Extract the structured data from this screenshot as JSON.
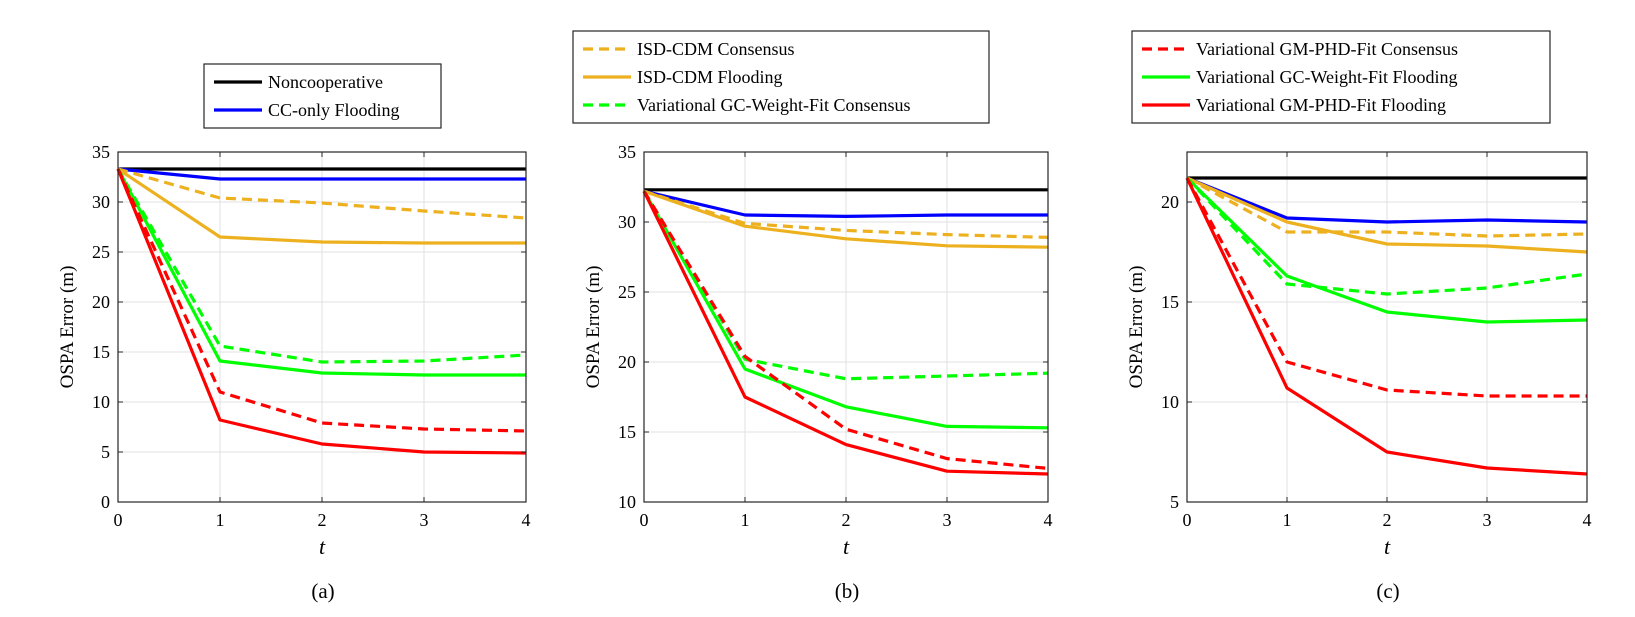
{
  "chart_data": [
    {
      "type": "line",
      "caption": "(a)",
      "xlabel": "t",
      "ylabel": "OSPA Error (m)",
      "x": [
        0,
        1,
        2,
        3,
        4
      ],
      "xlim": [
        0,
        4
      ],
      "ylim": [
        0,
        35
      ],
      "xticks": [
        "0",
        "1",
        "2",
        "3",
        "4"
      ],
      "yticks": [
        "0",
        "5",
        "10",
        "15",
        "20",
        "25",
        "30",
        "35"
      ],
      "ytick_values": [
        0,
        5,
        10,
        15,
        20,
        25,
        30,
        35
      ],
      "grid": true,
      "legend": [
        "Noncooperative",
        "CC-only Flooding"
      ],
      "series": [
        {
          "name": "Noncooperative",
          "color": "#000000",
          "dash": "solid",
          "values": [
            33.3,
            33.3,
            33.3,
            33.3,
            33.3
          ]
        },
        {
          "name": "CC-only Flooding",
          "color": "#0000ff",
          "dash": "solid",
          "values": [
            33.3,
            32.3,
            32.3,
            32.3,
            32.3
          ]
        },
        {
          "name": "ISD-CDM Consensus",
          "color": "#edb120",
          "dash": "dashed",
          "values": [
            33.3,
            30.4,
            29.9,
            29.1,
            28.4
          ]
        },
        {
          "name": "ISD-CDM Flooding",
          "color": "#edb120",
          "dash": "solid",
          "values": [
            33.3,
            26.5,
            26.0,
            25.9,
            25.9
          ]
        },
        {
          "name": "Variational GC-Weight-Fit Consensus",
          "color": "#00ff00",
          "dash": "dashed",
          "values": [
            33.3,
            15.6,
            14.0,
            14.1,
            14.7
          ]
        },
        {
          "name": "Variational GC-Weight-Fit Flooding",
          "color": "#00ff00",
          "dash": "solid",
          "values": [
            33.3,
            14.1,
            12.9,
            12.7,
            12.7
          ]
        },
        {
          "name": "Variational GM-PHD-Fit Consensus",
          "color": "#ff0000",
          "dash": "dashed",
          "values": [
            33.3,
            11.0,
            7.9,
            7.3,
            7.1
          ]
        },
        {
          "name": "Variational GM-PHD-Fit Flooding",
          "color": "#ff0000",
          "dash": "solid",
          "values": [
            33.3,
            8.2,
            5.8,
            5.0,
            4.9
          ]
        }
      ]
    },
    {
      "type": "line",
      "caption": "(b)",
      "xlabel": "t",
      "ylabel": "OSPA Error (m)",
      "x": [
        0,
        1,
        2,
        3,
        4
      ],
      "xlim": [
        0,
        4
      ],
      "ylim": [
        10,
        35
      ],
      "xticks": [
        "0",
        "1",
        "2",
        "3",
        "4"
      ],
      "yticks": [
        "10",
        "15",
        "20",
        "25",
        "30",
        "35"
      ],
      "ytick_values": [
        10,
        15,
        20,
        25,
        30,
        35
      ],
      "grid": true,
      "legend": [
        "ISD-CDM Consensus",
        "ISD-CDM Flooding",
        "Variational GC-Weight-Fit Consensus"
      ],
      "series": [
        {
          "name": "Noncooperative",
          "color": "#000000",
          "dash": "solid",
          "values": [
            32.3,
            32.3,
            32.3,
            32.3,
            32.3
          ]
        },
        {
          "name": "CC-only Flooding",
          "color": "#0000ff",
          "dash": "solid",
          "values": [
            32.2,
            30.5,
            30.4,
            30.5,
            30.5
          ]
        },
        {
          "name": "ISD-CDM Consensus",
          "color": "#edb120",
          "dash": "dashed",
          "values": [
            32.2,
            29.9,
            29.4,
            29.1,
            28.9
          ]
        },
        {
          "name": "ISD-CDM Flooding",
          "color": "#edb120",
          "dash": "solid",
          "values": [
            32.2,
            29.7,
            28.8,
            28.3,
            28.2
          ]
        },
        {
          "name": "Variational GC-Weight-Fit Consensus",
          "color": "#00ff00",
          "dash": "dashed",
          "values": [
            32.2,
            20.2,
            18.8,
            19.0,
            19.2
          ]
        },
        {
          "name": "Variational GC-Weight-Fit Flooding",
          "color": "#00ff00",
          "dash": "solid",
          "values": [
            32.2,
            19.5,
            16.8,
            15.4,
            15.3
          ]
        },
        {
          "name": "Variational GM-PHD-Fit Consensus",
          "color": "#ff0000",
          "dash": "dashed",
          "values": [
            32.2,
            20.4,
            15.2,
            13.1,
            12.4
          ]
        },
        {
          "name": "Variational GM-PHD-Fit Flooding",
          "color": "#ff0000",
          "dash": "solid",
          "values": [
            32.2,
            17.5,
            14.1,
            12.2,
            12.0
          ]
        }
      ]
    },
    {
      "type": "line",
      "caption": "(c)",
      "xlabel": "t",
      "ylabel": "OSPA Error (m)",
      "x": [
        0,
        1,
        2,
        3,
        4
      ],
      "xlim": [
        0,
        4
      ],
      "ylim": [
        5,
        22.5
      ],
      "xticks": [
        "0",
        "1",
        "2",
        "3",
        "4"
      ],
      "yticks": [
        "5",
        "10",
        "15",
        "20"
      ],
      "ytick_values": [
        5,
        10,
        15,
        20
      ],
      "grid": true,
      "legend": [
        "Variational GM-PHD-Fit Consensus",
        "Variational GC-Weight-Fit Flooding",
        "Variational GM-PHD-Fit Flooding"
      ],
      "series": [
        {
          "name": "Noncooperative",
          "color": "#000000",
          "dash": "solid",
          "values": [
            21.2,
            21.2,
            21.2,
            21.2,
            21.2
          ]
        },
        {
          "name": "CC-only Flooding",
          "color": "#0000ff",
          "dash": "solid",
          "values": [
            21.2,
            19.2,
            19.0,
            19.1,
            19.0
          ]
        },
        {
          "name": "ISD-CDM Consensus",
          "color": "#edb120",
          "dash": "dashed",
          "values": [
            21.2,
            18.5,
            18.5,
            18.3,
            18.4
          ]
        },
        {
          "name": "ISD-CDM Flooding",
          "color": "#edb120",
          "dash": "solid",
          "values": [
            21.2,
            19.0,
            17.9,
            17.8,
            17.5
          ]
        },
        {
          "name": "Variational GC-Weight-Fit Consensus",
          "color": "#00ff00",
          "dash": "dashed",
          "values": [
            21.2,
            15.9,
            15.4,
            15.7,
            16.4
          ]
        },
        {
          "name": "Variational GC-Weight-Fit Flooding",
          "color": "#00ff00",
          "dash": "solid",
          "values": [
            21.2,
            16.3,
            14.5,
            14.0,
            14.1
          ]
        },
        {
          "name": "Variational GM-PHD-Fit Consensus",
          "color": "#ff0000",
          "dash": "dashed",
          "values": [
            21.2,
            12.0,
            10.6,
            10.3,
            10.3
          ]
        },
        {
          "name": "Variational GM-PHD-Fit Flooding",
          "color": "#ff0000",
          "dash": "solid",
          "values": [
            21.2,
            10.7,
            7.5,
            6.7,
            6.4
          ]
        }
      ]
    }
  ]
}
